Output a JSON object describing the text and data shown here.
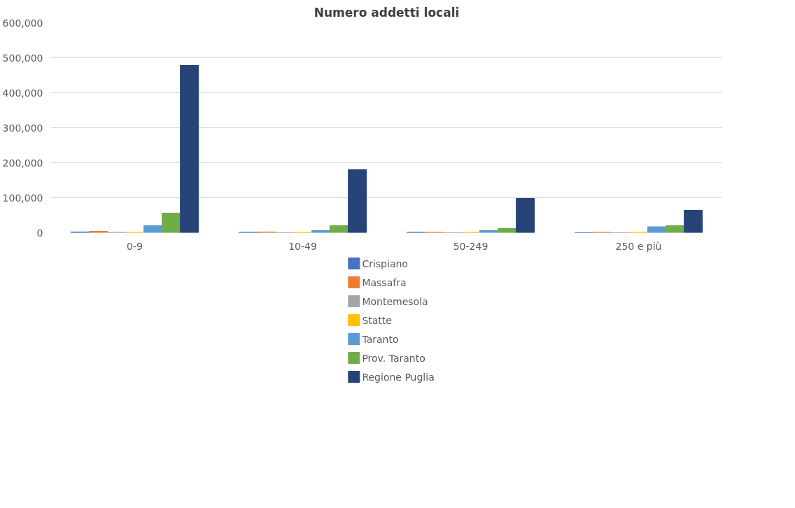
{
  "chart_data": {
    "type": "bar",
    "title": "Numero addetti locali",
    "categories": [
      "0-9",
      "10-49",
      "50-249",
      "250 e più"
    ],
    "series": [
      {
        "name": "Crispiano",
        "color": "#4472c4",
        "values": [
          2000,
          1000,
          1000,
          0
        ]
      },
      {
        "name": "Massafra",
        "color": "#ed7d31",
        "values": [
          4000,
          2000,
          1000,
          1000
        ]
      },
      {
        "name": "Montemesola",
        "color": "#a5a5a5",
        "values": [
          1000,
          0,
          0,
          0
        ]
      },
      {
        "name": "Statte",
        "color": "#ffc000",
        "values": [
          1000,
          1000,
          1000,
          1000
        ]
      },
      {
        "name": "Taranto",
        "color": "#5b9bd5",
        "values": [
          20000,
          6000,
          6000,
          17000
        ]
      },
      {
        "name": "Prov. Taranto",
        "color": "#70ad47",
        "values": [
          56000,
          20000,
          12000,
          20000
        ]
      },
      {
        "name": "Regione Puglia",
        "color": "#264478",
        "values": [
          478000,
          180000,
          98000,
          64000
        ]
      }
    ],
    "ylim": [
      0,
      600000
    ],
    "yticks": [
      0,
      {
        "value": 100000,
        "label": "100,000"
      },
      {
        "value": 200000,
        "label": "200,000"
      },
      {
        "value": 300000,
        "label": "300,000"
      },
      {
        "value": 400000,
        "label": "400,000"
      },
      {
        "value": 500000,
        "label": "500,000"
      },
      {
        "value": 600000,
        "label": "600,000"
      }
    ],
    "grid": "y",
    "legend": "bottom"
  }
}
